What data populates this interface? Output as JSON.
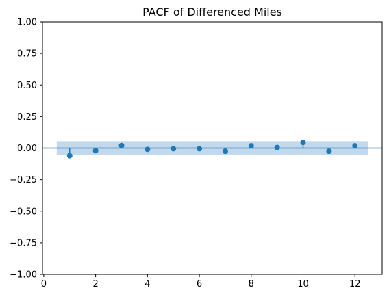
{
  "chart_data": {
    "type": "stem",
    "title": "PACF of Differenced Miles",
    "xlabel": "",
    "ylabel": "",
    "xlim": [
      -0.05,
      13.05
    ],
    "ylim": [
      -1.0,
      1.0
    ],
    "x_ticks": [
      0,
      2,
      4,
      6,
      8,
      10,
      12
    ],
    "y_ticks": [
      -1.0,
      -0.75,
      -0.5,
      -0.25,
      0.0,
      0.25,
      0.5,
      0.75,
      1.0
    ],
    "x_tick_labels": [
      "0",
      "2",
      "4",
      "6",
      "8",
      "10",
      "12"
    ],
    "y_tick_labels": [
      "−1.00",
      "−0.75",
      "−0.50",
      "−0.25",
      "0.00",
      "0.25",
      "0.50",
      "0.75",
      "1.00"
    ],
    "lags": [
      1,
      2,
      3,
      4,
      5,
      6,
      7,
      8,
      9,
      10,
      11,
      12
    ],
    "values": [
      -0.06,
      -0.02,
      0.02,
      -0.01,
      -0.005,
      -0.005,
      -0.025,
      0.018,
      0.005,
      0.045,
      -0.025,
      0.018
    ],
    "confidence_band": {
      "x_range": [
        0.5,
        12.5
      ],
      "lower": -0.055,
      "upper": 0.055
    },
    "zero_line": true,
    "grid": false,
    "colors": {
      "series": "#1f77b4",
      "band": "#c2d8ec"
    }
  }
}
